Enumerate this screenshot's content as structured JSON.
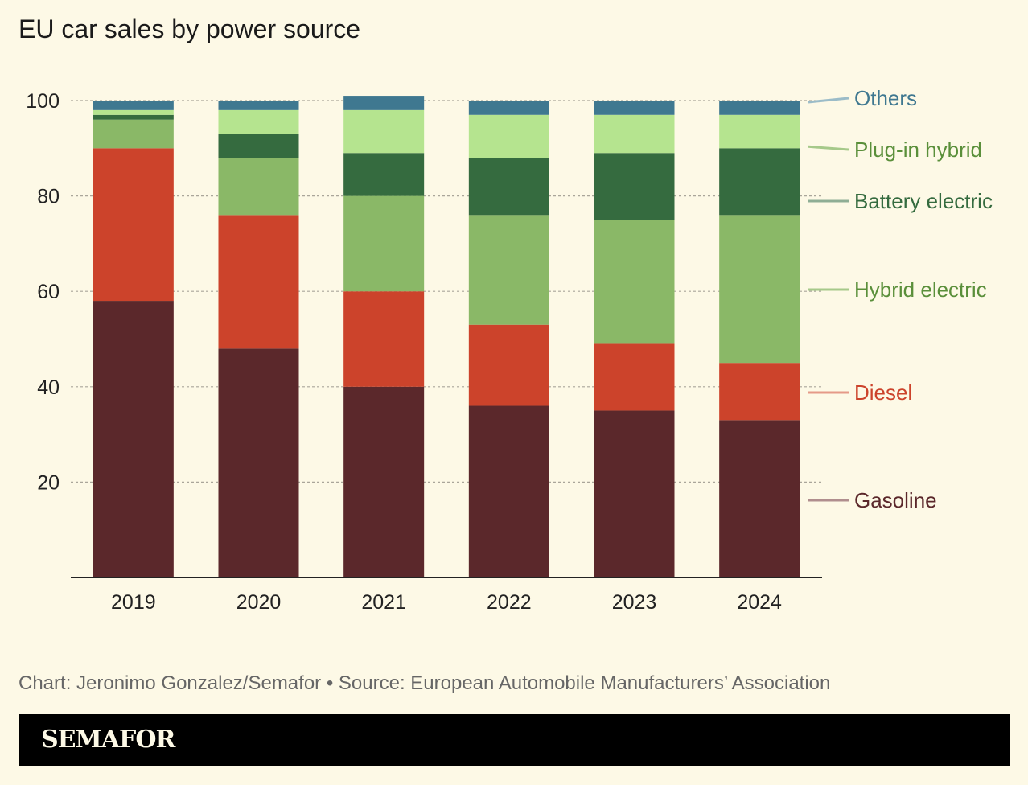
{
  "chart_data": {
    "type": "bar",
    "stacked": true,
    "title": "EU car sales by power source",
    "categories": [
      "2019",
      "2020",
      "2021",
      "2022",
      "2023",
      "2024"
    ],
    "ylim": [
      0,
      100
    ],
    "yticks": [
      20,
      40,
      60,
      80,
      100
    ],
    "grid": true,
    "legend": "right, labels beside last bar",
    "series": [
      {
        "name": "Gasoline",
        "color": "#5b282b",
        "label_color": "#5b282b",
        "values": [
          58,
          48,
          40,
          36,
          35,
          33
        ]
      },
      {
        "name": "Diesel",
        "color": "#cc432b",
        "label_color": "#cc432b",
        "values": [
          32,
          28,
          20,
          17,
          14,
          12
        ]
      },
      {
        "name": "Hybrid electric",
        "color": "#8ab867",
        "label_color": "#5a8f3a",
        "values": [
          6,
          12,
          20,
          23,
          26,
          31
        ]
      },
      {
        "name": "Battery electric",
        "color": "#356b3f",
        "label_color": "#356b3f",
        "values": [
          1,
          5,
          9,
          12,
          14,
          14
        ]
      },
      {
        "name": "Plug-in hybrid",
        "color": "#b5e48f",
        "label_color": "#5a8f3a",
        "values": [
          1,
          5,
          9,
          9,
          8,
          7
        ]
      },
      {
        "name": "Others",
        "color": "#3f7890",
        "label_color": "#3f7890",
        "values": [
          2,
          2,
          3,
          3,
          3,
          3
        ]
      }
    ]
  },
  "credit": "Chart: Jeronimo Gonzalez/Semafor • Source: European Automobile Manufacturers’ Association",
  "brand": "SEMAFOR"
}
